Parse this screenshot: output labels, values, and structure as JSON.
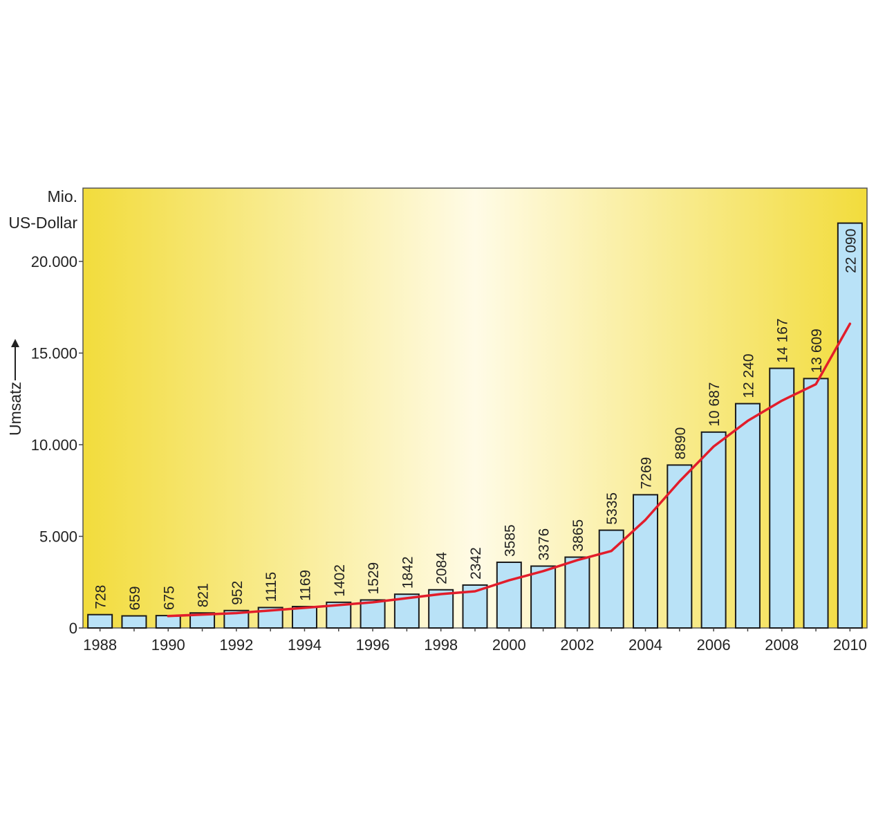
{
  "chart_data": {
    "type": "bar",
    "unit_label": [
      "Mio.",
      "US-Dollar"
    ],
    "ylabel": "Umsatz",
    "categories": [
      "1988",
      "1989",
      "1990",
      "1991",
      "1992",
      "1993",
      "1994",
      "1995",
      "1996",
      "1997",
      "1998",
      "1999",
      "2000",
      "2001",
      "2002",
      "2003",
      "2004",
      "2005",
      "2006",
      "2007",
      "2008",
      "2009",
      "2010"
    ],
    "values": [
      728,
      659,
      675,
      821,
      952,
      1115,
      1169,
      1402,
      1529,
      1842,
      2084,
      2342,
      3585,
      3376,
      3865,
      5335,
      7269,
      8890,
      10687,
      12240,
      14167,
      13609,
      22090
    ],
    "value_labels": [
      "728",
      "659",
      "675",
      "821",
      "952",
      "1115",
      "1169",
      "1402",
      "1529",
      "1842",
      "2084",
      "2342",
      "3585",
      "3376",
      "3865",
      "5335",
      "7269",
      "8890",
      "10 687",
      "12 240",
      "14 167",
      "13 609",
      "22 090"
    ],
    "x_tick_labels": [
      "1988",
      "1990",
      "1992",
      "1994",
      "1996",
      "1998",
      "2000",
      "2002",
      "2004",
      "2006",
      "2008",
      "2010"
    ],
    "y_ticks": [
      0,
      5000,
      10000,
      15000,
      20000
    ],
    "y_tick_labels": [
      "0",
      "5.000",
      "10.000",
      "15.000",
      "20.000"
    ],
    "ylim": [
      0,
      24000
    ],
    "trend_line": {
      "x": [
        "1990",
        "1992",
        "1994",
        "1996",
        "1998",
        "1999",
        "2000",
        "2001",
        "2002",
        "2003",
        "2004",
        "2005",
        "2006",
        "2007",
        "2008",
        "2009",
        "2010"
      ],
      "values": [
        650,
        810,
        1100,
        1400,
        1850,
        2000,
        2600,
        3100,
        3700,
        4200,
        5900,
        8000,
        9900,
        11300,
        12400,
        13300,
        16600
      ]
    },
    "grid": false,
    "colors": {
      "bar_fill": "#b9e2f7",
      "bar_stroke": "#1a1a1a",
      "trend": "#e21d2b",
      "bg_edge": "#f2dc3c",
      "bg_center": "#fffbe6"
    }
  }
}
